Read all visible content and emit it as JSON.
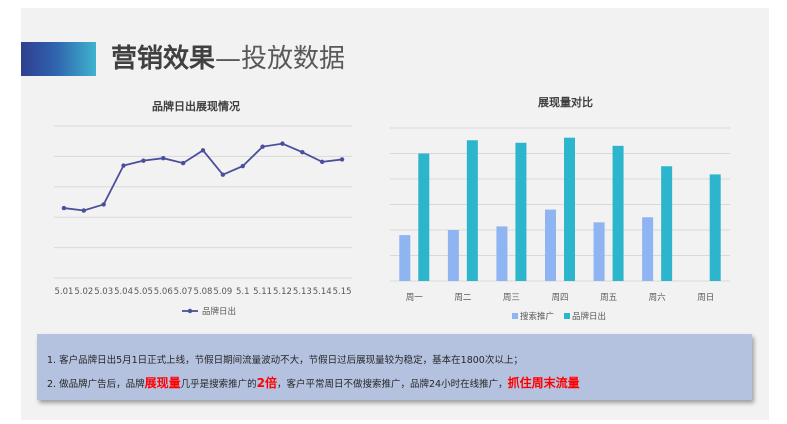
{
  "header": {
    "title_bold": "营销效果",
    "title_rest": "—投放数据"
  },
  "colors": {
    "line": "#4a4f9c",
    "bar_search": "#8fb4f2",
    "bar_brand": "#2cb5cc",
    "grid": "#d9d9d9",
    "highlight": "#ff0000"
  },
  "chart_data": [
    {
      "type": "line",
      "title": "品牌日出展现情况",
      "x": [
        "5.01",
        "5.02",
        "5.03",
        "5.04",
        "5.05",
        "5.06",
        "5.07",
        "5.08",
        "5.09",
        "5.1",
        "5.11",
        "5.12",
        "5.13",
        "5.14",
        "5.15"
      ],
      "series": [
        {
          "name": "品牌日出",
          "values": [
            1575,
            1555,
            1605,
            1925,
            1965,
            1985,
            1945,
            2050,
            1850,
            1920,
            2080,
            2105,
            2035,
            1955,
            1975
          ]
        }
      ],
      "ylim": [
        1000,
        2250
      ],
      "grid": true,
      "legend": "bottom"
    },
    {
      "type": "bar",
      "title": "展现量对比",
      "categories": [
        "周一",
        "周二",
        "周三",
        "周四",
        "周五",
        "周六",
        "周日"
      ],
      "series": [
        {
          "name": "搜索推广",
          "values": [
            900,
            1000,
            1070,
            1400,
            1150,
            1250,
            0
          ]
        },
        {
          "name": "品牌日出",
          "values": [
            2500,
            2760,
            2710,
            2810,
            2650,
            2250,
            2090
          ]
        }
      ],
      "ylim": [
        0,
        3000
      ],
      "grid": true,
      "legend": "bottom"
    }
  ],
  "note": {
    "line1": "1. 客户品牌日出5月1日正式上线，节假日期间流量波动不大，节假日过后展现量较为稳定，基本在1800次以上；",
    "line2_a": "2. 做品牌广告后，品牌",
    "line2_b": "展现量",
    "line2_c": "几乎是搜索推广的",
    "line2_d": "2倍",
    "line2_e": "，客户平常周日不做搜索推广，品牌24小时在线推广，",
    "line2_f": "抓住周末流量"
  }
}
